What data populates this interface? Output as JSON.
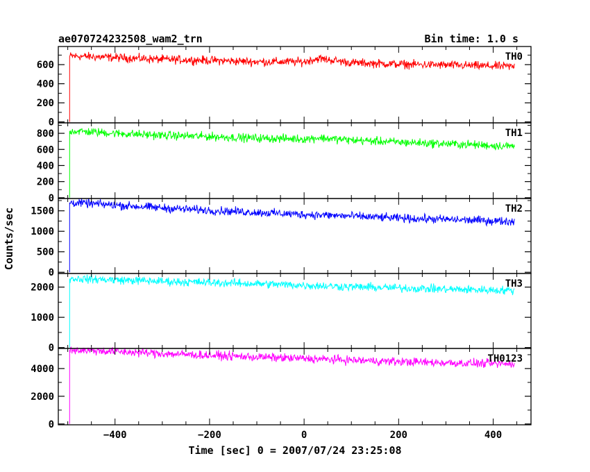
{
  "header": {
    "title": "ae070724232508_wam2_trn",
    "bin_time": "Bin time: 1.0 s"
  },
  "chart_data": {
    "type": "line",
    "xlabel": "Time [sec] 0 = 2007/07/24 23:25:08",
    "ylabel": "Counts/sec",
    "xlim": [
      -520,
      480
    ],
    "xticks": [
      -400,
      -200,
      0,
      200,
      400
    ],
    "grid": false,
    "panels": [
      {
        "name": "TH0",
        "color": "#ff0000",
        "ylim": [
          -10,
          790
        ],
        "yticks": [
          0,
          200,
          400,
          600
        ],
        "x_start": -496,
        "x_end": 445,
        "values": [
          {
            "x": -490,
            "y": 690
          },
          {
            "x": -400,
            "y": 675
          },
          {
            "x": -300,
            "y": 655
          },
          {
            "x": -200,
            "y": 645
          },
          {
            "x": -100,
            "y": 630
          },
          {
            "x": 0,
            "y": 630
          },
          {
            "x": 30,
            "y": 665
          },
          {
            "x": 100,
            "y": 620
          },
          {
            "x": 200,
            "y": 605
          },
          {
            "x": 300,
            "y": 595
          },
          {
            "x": 440,
            "y": 580
          }
        ]
      },
      {
        "name": "TH1",
        "color": "#00ff00",
        "ylim": [
          -10,
          930
        ],
        "yticks": [
          0,
          200,
          400,
          600,
          800
        ],
        "x_start": -496,
        "x_end": 445,
        "values": [
          {
            "x": -490,
            "y": 830
          },
          {
            "x": -400,
            "y": 800
          },
          {
            "x": -300,
            "y": 775
          },
          {
            "x": -200,
            "y": 760
          },
          {
            "x": -100,
            "y": 740
          },
          {
            "x": 0,
            "y": 730
          },
          {
            "x": 30,
            "y": 745
          },
          {
            "x": 100,
            "y": 715
          },
          {
            "x": 200,
            "y": 690
          },
          {
            "x": 300,
            "y": 670
          },
          {
            "x": 440,
            "y": 640
          }
        ]
      },
      {
        "name": "TH2",
        "color": "#0000ff",
        "ylim": [
          -30,
          1800
        ],
        "yticks": [
          0,
          500,
          1000,
          1500
        ],
        "x_start": -496,
        "x_end": 445,
        "values": [
          {
            "x": -490,
            "y": 1700
          },
          {
            "x": -400,
            "y": 1640
          },
          {
            "x": -300,
            "y": 1570
          },
          {
            "x": -200,
            "y": 1510
          },
          {
            "x": -100,
            "y": 1460
          },
          {
            "x": 0,
            "y": 1410
          },
          {
            "x": 100,
            "y": 1370
          },
          {
            "x": 200,
            "y": 1320
          },
          {
            "x": 300,
            "y": 1290
          },
          {
            "x": 440,
            "y": 1240
          }
        ]
      },
      {
        "name": "TH3",
        "color": "#00ffff",
        "ylim": [
          -30,
          2450
        ],
        "yticks": [
          0,
          1000,
          2000
        ],
        "x_start": -496,
        "x_end": 445,
        "values": [
          {
            "x": -490,
            "y": 2280
          },
          {
            "x": -400,
            "y": 2240
          },
          {
            "x": -300,
            "y": 2190
          },
          {
            "x": -200,
            "y": 2150
          },
          {
            "x": -100,
            "y": 2110
          },
          {
            "x": 0,
            "y": 2060
          },
          {
            "x": 100,
            "y": 2010
          },
          {
            "x": 200,
            "y": 1970
          },
          {
            "x": 300,
            "y": 1930
          },
          {
            "x": 440,
            "y": 1890
          }
        ]
      },
      {
        "name": "TH0123",
        "color": "#ff00ff",
        "ylim": [
          -60,
          5450
        ],
        "yticks": [
          0,
          2000,
          4000
        ],
        "x_start": -496,
        "x_end": 445,
        "values": [
          {
            "x": -490,
            "y": 5350
          },
          {
            "x": -400,
            "y": 5230
          },
          {
            "x": -300,
            "y": 5080
          },
          {
            "x": -200,
            "y": 4950
          },
          {
            "x": -100,
            "y": 4830
          },
          {
            "x": 0,
            "y": 4720
          },
          {
            "x": 100,
            "y": 4600
          },
          {
            "x": 200,
            "y": 4500
          },
          {
            "x": 300,
            "y": 4420
          },
          {
            "x": 440,
            "y": 4320
          }
        ]
      }
    ]
  }
}
